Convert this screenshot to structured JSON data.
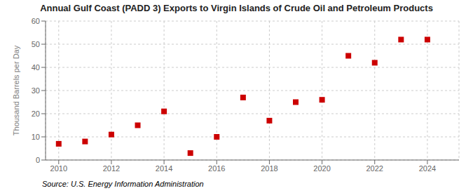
{
  "chart_data": {
    "type": "scatter",
    "title": "Annual Gulf Coast (PADD 3) Exports to Virgin Islands of Crude Oil and Petroleum Products",
    "ylabel": "Thousand Barrels per Day",
    "source": "Source: U.S. Energy Information Administration",
    "x": [
      2010,
      2011,
      2012,
      2013,
      2014,
      2015,
      2016,
      2017,
      2018,
      2019,
      2020,
      2021,
      2022,
      2023,
      2024
    ],
    "values": [
      7,
      8,
      11,
      15,
      21,
      3,
      10,
      27,
      17,
      25,
      26,
      45,
      42,
      52,
      52
    ],
    "color": "#cc0000",
    "marker": "square",
    "xlim": [
      2009.5,
      2025.2
    ],
    "ylim": [
      0,
      60
    ],
    "xticks": [
      2010,
      2012,
      2014,
      2016,
      2018,
      2020,
      2022,
      2024
    ],
    "yticks": [
      0,
      10,
      20,
      30,
      40,
      50,
      60
    ],
    "grid": true
  }
}
